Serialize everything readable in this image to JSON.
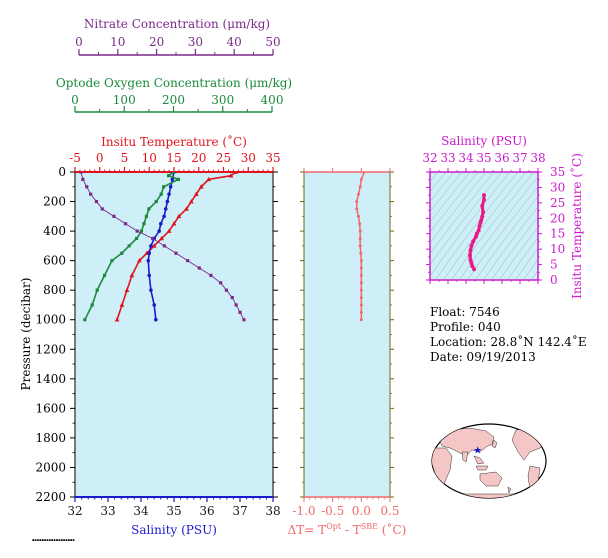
{
  "chart_data": [
    {
      "type": "line",
      "ylabel": "Pressure (decibar)",
      "y_ticks": [
        "0",
        "200",
        "400",
        "600",
        "800",
        "1000",
        "1200",
        "1400",
        "1600",
        "1800",
        "2000",
        "2200"
      ],
      "ylim": [
        0,
        2200
      ],
      "axes": {
        "nitrate": {
          "label": "Nitrate Concentration (μm/kg)",
          "range": [
            0,
            50
          ],
          "ticks": [
            "0",
            "10",
            "20",
            "30",
            "40",
            "50"
          ],
          "color": "#7b2a8a"
        },
        "oxygen": {
          "label": "Optode Oxygen Concentration (μm/kg)",
          "range": [
            0,
            400
          ],
          "ticks": [
            "0",
            "100",
            "200",
            "300",
            "400"
          ],
          "color": "#1a8a3a"
        },
        "temperature": {
          "label": "Insitu Temperature (˚C)",
          "range": [
            -5,
            35
          ],
          "ticks": [
            "-5",
            "0",
            "5",
            "10",
            "15",
            "20",
            "25",
            "30",
            "35"
          ],
          "color": "#e0141e"
        },
        "salinity": {
          "label": "Salinity (PSU)",
          "range": [
            32,
            38
          ],
          "ticks": [
            "32",
            "33",
            "34",
            "35",
            "36",
            "37",
            "38"
          ],
          "color": "#1a1acc"
        }
      },
      "series": [
        {
          "key": "temperature",
          "marker": "triangle",
          "color": "#e0141e",
          "points": [
            [
              27.5,
              0
            ],
            [
              26.5,
              25
            ],
            [
              22,
              50
            ],
            [
              20.5,
              100
            ],
            [
              19.5,
              150
            ],
            [
              18.5,
              200
            ],
            [
              17.5,
              250
            ],
            [
              16,
              300
            ],
            [
              15,
              350
            ],
            [
              14,
              400
            ],
            [
              12.5,
              450
            ],
            [
              11,
              500
            ],
            [
              9.5,
              550
            ],
            [
              8,
              600
            ],
            [
              6.5,
              700
            ],
            [
              5.5,
              800
            ],
            [
              4.5,
              900
            ],
            [
              3.5,
              1000
            ]
          ]
        },
        {
          "key": "salinity",
          "marker": "circle",
          "color": "#1a1acc",
          "points": [
            [
              35.0,
              0
            ],
            [
              34.95,
              50
            ],
            [
              34.9,
              100
            ],
            [
              34.85,
              150
            ],
            [
              34.8,
              200
            ],
            [
              34.75,
              250
            ],
            [
              34.7,
              300
            ],
            [
              34.6,
              350
            ],
            [
              34.55,
              400
            ],
            [
              34.4,
              450
            ],
            [
              34.3,
              500
            ],
            [
              34.25,
              550
            ],
            [
              34.22,
              600
            ],
            [
              34.25,
              700
            ],
            [
              34.3,
              800
            ],
            [
              34.4,
              900
            ],
            [
              34.45,
              1000
            ]
          ]
        },
        {
          "key": "oxygen",
          "marker": "square",
          "color": "#1a8a3a",
          "points": [
            [
              200,
              0
            ],
            [
              190,
              25
            ],
            [
              210,
              50
            ],
            [
              180,
              100
            ],
            [
              175,
              150
            ],
            [
              165,
              200
            ],
            [
              150,
              250
            ],
            [
              145,
              300
            ],
            [
              140,
              350
            ],
            [
              135,
              400
            ],
            [
              125,
              450
            ],
            [
              110,
              500
            ],
            [
              95,
              550
            ],
            [
              75,
              600
            ],
            [
              60,
              700
            ],
            [
              45,
              800
            ],
            [
              35,
              900
            ],
            [
              20,
              1000
            ]
          ]
        },
        {
          "key": "nitrate",
          "marker": "square",
          "color": "#7b2a8a",
          "points": [
            [
              0.5,
              0
            ],
            [
              1,
              50
            ],
            [
              2,
              100
            ],
            [
              3,
              150
            ],
            [
              4.5,
              200
            ],
            [
              6,
              250
            ],
            [
              9,
              300
            ],
            [
              12,
              350
            ],
            [
              15,
              400
            ],
            [
              19,
              450
            ],
            [
              22,
              500
            ],
            [
              25,
              550
            ],
            [
              28,
              600
            ],
            [
              31,
              650
            ],
            [
              34,
              700
            ],
            [
              36.5,
              750
            ],
            [
              38,
              800
            ],
            [
              39.5,
              850
            ],
            [
              40.5,
              900
            ],
            [
              41.5,
              950
            ],
            [
              42.5,
              1000
            ]
          ]
        }
      ]
    },
    {
      "type": "line",
      "xlabel": "ΔT= T^Opt - T^SBE (˚C)",
      "xlabel_parts": {
        "pre": "ΔT= T",
        "sup1": "Opt",
        "mid": " - T",
        "sup2": "SBE",
        "post": " (˚C)"
      },
      "xlim": [
        -1.0,
        0.5
      ],
      "x_ticks": [
        "-1.0",
        "-0.5",
        "0.0",
        "0.5"
      ],
      "ylim": [
        0,
        2200
      ],
      "color": "#f06a6a",
      "points": [
        [
          0.05,
          0
        ],
        [
          0.0,
          50
        ],
        [
          -0.02,
          100
        ],
        [
          -0.05,
          150
        ],
        [
          -0.08,
          200
        ],
        [
          -0.08,
          250
        ],
        [
          -0.05,
          300
        ],
        [
          -0.03,
          350
        ],
        [
          -0.02,
          400
        ],
        [
          -0.02,
          450
        ],
        [
          -0.02,
          500
        ],
        [
          -0.01,
          550
        ],
        [
          0.0,
          600
        ],
        [
          0.0,
          650
        ],
        [
          0.0,
          700
        ],
        [
          0.0,
          750
        ],
        [
          0.0,
          800
        ],
        [
          0.0,
          850
        ],
        [
          0.0,
          900
        ],
        [
          0.0,
          950
        ],
        [
          0.0,
          1000
        ]
      ]
    },
    {
      "type": "scatter",
      "xlabel": "Salinity (PSU)",
      "ylabel": "Insitu Temperature (˚C)",
      "xlim": [
        32,
        38
      ],
      "ylim": [
        0,
        35
      ],
      "x_ticks": [
        "32",
        "33",
        "34",
        "35",
        "36",
        "37",
        "38"
      ],
      "y_ticks": [
        "0",
        "5",
        "10",
        "15",
        "20",
        "25",
        "30",
        "35"
      ],
      "color": "#e81a8a",
      "points": [
        [
          34.45,
          3.5
        ],
        [
          34.35,
          4.5
        ],
        [
          34.3,
          5.5
        ],
        [
          34.25,
          6.5
        ],
        [
          34.22,
          8
        ],
        [
          34.25,
          9.5
        ],
        [
          34.3,
          11
        ],
        [
          34.4,
          12.5
        ],
        [
          34.55,
          14
        ],
        [
          34.6,
          15
        ],
        [
          34.7,
          16
        ],
        [
          34.75,
          17.5
        ],
        [
          34.8,
          18.5
        ],
        [
          34.85,
          19.5
        ],
        [
          34.9,
          20.5
        ],
        [
          34.95,
          22
        ],
        [
          34.9,
          24
        ],
        [
          35.0,
          26
        ],
        [
          35.0,
          27.5
        ]
      ]
    }
  ],
  "info": {
    "float": "Float:  7546",
    "profile": "Profile:  040",
    "location": "Location:  28.8˚N  142.4˚E",
    "date": "Date:  09/19/2013"
  },
  "map": {
    "marker_lat": 28.8,
    "marker_lon": 142.4,
    "marker_color": "#1a1acc"
  },
  "colors": {
    "panel_bg": "#cfeff8",
    "axis_olive": "#6b6b1a"
  }
}
